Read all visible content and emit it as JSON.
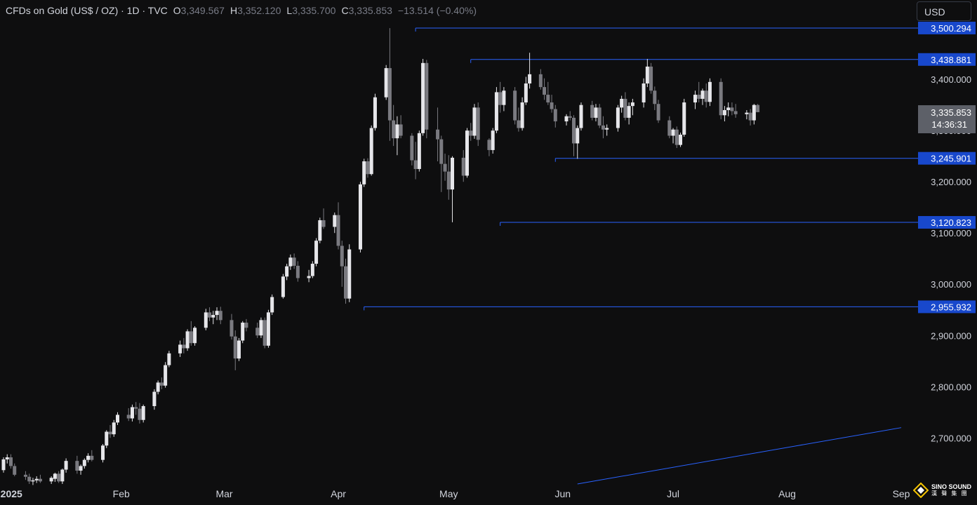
{
  "header": {
    "symbol": "CFDs on Gold (US$ / OZ) · 1D · TVC",
    "o_label": "O",
    "o_value": "3,349.567",
    "h_label": "H",
    "h_value": "3,352.120",
    "l_label": "L",
    "l_value": "3,335.700",
    "c_label": "C",
    "c_value": "3,335.853",
    "change": "−13.514 (−0.40%)"
  },
  "currency_button": "USD",
  "logo": {
    "text": "SINO SOUND",
    "subtext": "漢 聲 集 團"
  },
  "colors": {
    "background": "#0e0e0f",
    "up": "#e6e6ea",
    "down": "#7a7a80",
    "level_line": "#2962ff",
    "label_bg": "#1848cc",
    "axis_text": "#d1d4dc"
  },
  "chart_data": {
    "type": "candlestick",
    "title": "CFDs on Gold (US$ / OZ) · 1D · TVC",
    "ylim": [
      2610,
      3555
    ],
    "y_ticks": [
      "2,700.000",
      "2,800.000",
      "2,900.000",
      "3,000.000",
      "3,100.000",
      "3,200.000",
      "3,300.000",
      "3,400.000"
    ],
    "y_tick_values": [
      2700,
      2800,
      2900,
      3000,
      3100,
      3200,
      3300,
      3400
    ],
    "x_labels": [
      "2025",
      "Feb",
      "Mar",
      "Apr",
      "May",
      "Jun",
      "Jul",
      "Aug",
      "Sep"
    ],
    "x_label_dates": [
      "2025-01-01",
      "2025-02-01",
      "2025-03-01",
      "2025-04-01",
      "2025-05-01",
      "2025-06-01",
      "2025-07-01",
      "2025-08-01",
      "2025-09-01"
    ],
    "horizontal_levels": [
      {
        "value": 3500.294,
        "label": "3,500.294",
        "from_date": "2025-04-22"
      },
      {
        "value": 3438.881,
        "label": "3,438.881",
        "from_date": "2025-05-07"
      },
      {
        "value": 3245.901,
        "label": "3,245.901",
        "from_date": "2025-05-30"
      },
      {
        "value": 3120.823,
        "label": "3,120.823",
        "from_date": "2025-05-15"
      },
      {
        "value": 2955.932,
        "label": "2,955.932",
        "from_date": "2025-04-08"
      }
    ],
    "trendline": {
      "start": {
        "date": "2025-06-05",
        "value": 2610
      },
      "end": {
        "date": "2025-09-01",
        "value": 2720
      }
    },
    "last_price": {
      "value": 3335.853,
      "label": "3,335.853",
      "countdown": "14:36:31"
    },
    "candles_ohlc": [
      [
        2637,
        2662,
        2632,
        2658
      ],
      [
        2658,
        2668,
        2650,
        2662
      ],
      [
        2662,
        2668,
        2640,
        2645
      ],
      [
        2645,
        2650,
        2625,
        2628
      ],
      [
        2628,
        2635,
        2618,
        2624
      ],
      [
        2624,
        2630,
        2610,
        2615
      ],
      [
        2615,
        2622,
        2608,
        2617
      ],
      [
        2617,
        2625,
        2612,
        2620
      ],
      [
        2620,
        2628,
        2612,
        2615
      ],
      [
        2615,
        2625,
        2610,
        2622
      ],
      [
        2620,
        2632,
        2614,
        2630
      ],
      [
        2630,
        2635,
        2612,
        2615
      ],
      [
        2615,
        2640,
        2610,
        2638
      ],
      [
        2638,
        2660,
        2632,
        2655
      ],
      [
        2655,
        2665,
        2630,
        2636
      ],
      [
        2636,
        2648,
        2628,
        2645
      ],
      [
        2645,
        2660,
        2640,
        2657
      ],
      [
        2657,
        2670,
        2652,
        2665
      ],
      [
        2665,
        2676,
        2654,
        2657
      ],
      [
        2657,
        2688,
        2652,
        2685
      ],
      [
        2685,
        2715,
        2680,
        2712
      ],
      [
        2712,
        2725,
        2700,
        2707
      ],
      [
        2707,
        2735,
        2702,
        2730
      ],
      [
        2730,
        2750,
        2725,
        2745
      ],
      [
        2745,
        2758,
        2733,
        2738
      ],
      [
        2738,
        2765,
        2732,
        2760
      ],
      [
        2760,
        2770,
        2745,
        2757
      ],
      [
        2757,
        2768,
        2728,
        2735
      ],
      [
        2735,
        2765,
        2730,
        2762
      ],
      [
        2762,
        2795,
        2755,
        2790
      ],
      [
        2790,
        2812,
        2785,
        2808
      ],
      [
        2808,
        2818,
        2795,
        2802
      ],
      [
        2802,
        2848,
        2798,
        2842
      ],
      [
        2842,
        2870,
        2838,
        2865
      ],
      [
        2865,
        2890,
        2858,
        2882
      ],
      [
        2882,
        2895,
        2865,
        2875
      ],
      [
        2875,
        2912,
        2870,
        2908
      ],
      [
        2908,
        2928,
        2880,
        2885
      ],
      [
        2885,
        2918,
        2880,
        2915
      ],
      [
        2915,
        2952,
        2910,
        2945
      ],
      [
        2945,
        2955,
        2928,
        2935
      ],
      [
        2935,
        2948,
        2922,
        2940
      ],
      [
        2940,
        2955,
        2930,
        2948
      ],
      [
        2948,
        2956,
        2922,
        2930
      ],
      [
        2930,
        2942,
        2892,
        2898
      ],
      [
        2898,
        2910,
        2832,
        2855
      ],
      [
        2855,
        2895,
        2850,
        2890
      ],
      [
        2890,
        2928,
        2885,
        2925
      ],
      [
        2925,
        2932,
        2908,
        2915
      ],
      [
        2915,
        2925,
        2895,
        2900
      ],
      [
        2900,
        2935,
        2895,
        2930
      ],
      [
        2930,
        2935,
        2875,
        2880
      ],
      [
        2880,
        2950,
        2876,
        2945
      ],
      [
        2945,
        2980,
        2940,
        2975
      ],
      [
        2975,
        3020,
        2972,
        3015
      ],
      [
        3015,
        3040,
        3008,
        3035
      ],
      [
        3035,
        3058,
        3028,
        3052
      ],
      [
        3052,
        3060,
        3030,
        3036
      ],
      [
        3036,
        3045,
        3005,
        3012
      ],
      [
        3012,
        3028,
        3004,
        3016
      ],
      [
        3016,
        3045,
        3012,
        3040
      ],
      [
        3040,
        3090,
        3035,
        3085
      ],
      [
        3085,
        3130,
        3080,
        3125
      ],
      [
        3125,
        3148,
        3108,
        3112
      ],
      [
        3112,
        3140,
        3100,
        3135
      ],
      [
        3135,
        3160,
        3068,
        3075
      ],
      [
        3075,
        3085,
        2995,
        3035
      ],
      [
        3035,
        3050,
        2962,
        2972
      ],
      [
        2972,
        3078,
        2965,
        3068
      ],
      [
        3068,
        3200,
        3062,
        3195
      ],
      [
        3195,
        3245,
        3190,
        3240
      ],
      [
        3240,
        3246,
        3208,
        3215
      ],
      [
        3215,
        3310,
        3212,
        3305
      ],
      [
        3305,
        3372,
        3300,
        3365
      ],
      [
        3365,
        3428,
        3360,
        3422
      ],
      [
        3422,
        3500,
        3280,
        3320
      ],
      [
        3320,
        3350,
        3270,
        3285
      ],
      [
        3285,
        3328,
        3252,
        3312
      ],
      [
        3312,
        3330,
        3285,
        3290
      ],
      [
        3290,
        3295,
        3232,
        3242
      ],
      [
        3242,
        3278,
        3205,
        3225
      ],
      [
        3225,
        3300,
        3220,
        3295
      ],
      [
        3295,
        3440,
        3290,
        3432
      ],
      [
        3432,
        3438,
        3285,
        3302
      ],
      [
        3302,
        3345,
        3240,
        3283
      ],
      [
        3283,
        3290,
        3180,
        3235
      ],
      [
        3235,
        3255,
        3202,
        3220
      ],
      [
        3220,
        3252,
        3165,
        3185
      ],
      [
        3185,
        3250,
        3121,
        3247
      ],
      [
        3247,
        3262,
        3200,
        3212
      ],
      [
        3212,
        3305,
        3208,
        3300
      ],
      [
        3300,
        3315,
        3280,
        3290
      ],
      [
        3290,
        3352,
        3284,
        3345
      ],
      [
        3345,
        3355,
        3270,
        3282
      ],
      [
        3282,
        3285,
        3250,
        3262
      ],
      [
        3262,
        3305,
        3255,
        3300
      ],
      [
        3300,
        3385,
        3295,
        3375
      ],
      [
        3375,
        3395,
        3335,
        3350
      ],
      [
        3350,
        3385,
        3338,
        3378
      ],
      [
        3378,
        3385,
        3312,
        3320
      ],
      [
        3320,
        3345,
        3298,
        3305
      ],
      [
        3305,
        3365,
        3300,
        3355
      ],
      [
        3355,
        3405,
        3350,
        3392
      ],
      [
        3392,
        3452,
        3382,
        3410
      ],
      [
        3410,
        3420,
        3380,
        3385
      ],
      [
        3385,
        3402,
        3360,
        3370
      ],
      [
        3370,
        3395,
        3350,
        3355
      ],
      [
        3355,
        3370,
        3335,
        3342
      ],
      [
        3342,
        3350,
        3306,
        3318
      ],
      [
        3318,
        3332,
        3310,
        3328
      ],
      [
        3328,
        3338,
        3320,
        3325
      ],
      [
        3325,
        3330,
        3250,
        3275
      ],
      [
        3275,
        3310,
        3245,
        3305
      ],
      [
        3305,
        3355,
        3300,
        3350
      ],
      [
        3350,
        3358,
        3320,
        3325
      ],
      [
        3325,
        3352,
        3318,
        3345
      ],
      [
        3345,
        3352,
        3305,
        3310
      ],
      [
        3310,
        3328,
        3285,
        3302
      ],
      [
        3302,
        3312,
        3290,
        3305
      ],
      [
        3305,
        3350,
        3298,
        3345
      ],
      [
        3345,
        3368,
        3335,
        3362
      ],
      [
        3362,
        3375,
        3320,
        3325
      ],
      [
        3325,
        3355,
        3312,
        3348
      ],
      [
        3348,
        3362,
        3330,
        3355
      ],
      [
        3355,
        3402,
        3345,
        3392
      ],
      [
        3392,
        3440,
        3385,
        3425
      ],
      [
        3425,
        3432,
        3372,
        3378
      ],
      [
        3378,
        3386,
        3340,
        3352
      ],
      [
        3352,
        3360,
        3315,
        3320
      ],
      [
        3320,
        3328,
        3285,
        3290
      ],
      [
        3290,
        3305,
        3275,
        3302
      ],
      [
        3302,
        3308,
        3266,
        3272
      ],
      [
        3272,
        3296,
        3268,
        3292
      ],
      [
        3292,
        3362,
        3288,
        3355
      ],
      [
        3355,
        3378,
        3342,
        3370
      ],
      [
        3370,
        3395,
        3355,
        3362
      ],
      [
        3362,
        3382,
        3350,
        3378
      ],
      [
        3378,
        3392,
        3345,
        3356
      ],
      [
        3356,
        3402,
        3348,
        3395
      ],
      [
        3395,
        3402,
        3322,
        3330
      ],
      [
        3330,
        3348,
        3318,
        3340
      ],
      [
        3340,
        3355,
        3328,
        3345
      ],
      [
        3345,
        3355,
        3330,
        3338
      ],
      [
        3338,
        3352,
        3325,
        3332
      ],
      [
        3332,
        3340,
        3322,
        3335
      ],
      [
        3335,
        3342,
        3310,
        3320
      ],
      [
        3320,
        3352,
        3312,
        3350
      ],
      [
        3350,
        3352,
        3336,
        3336
      ]
    ]
  }
}
